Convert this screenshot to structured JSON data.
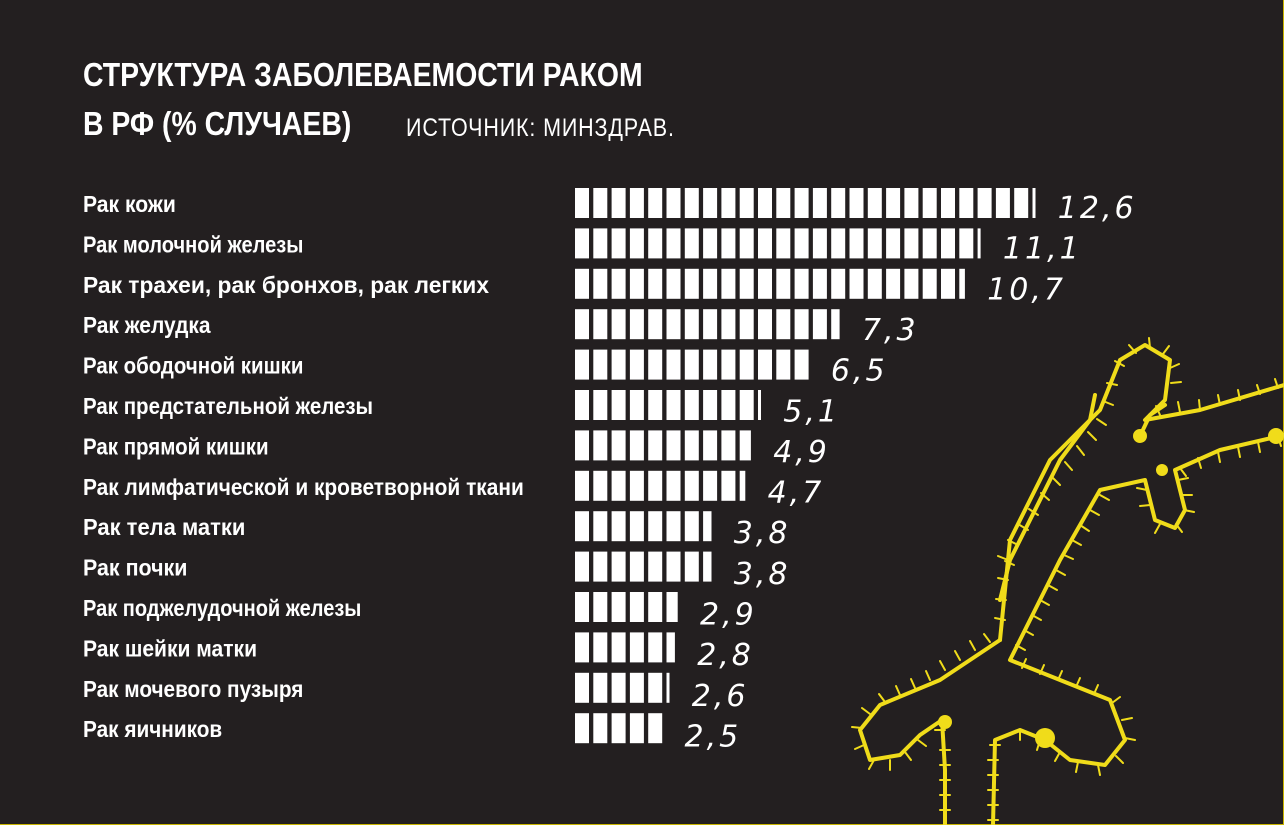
{
  "header": {
    "title_line_1": "СТРУКТУРА ЗАБОЛЕВАЕМОСТИ РАКОМ",
    "title_line_2": "В РФ (% СЛУЧАЕВ)",
    "source": "ИСТОЧНИК: МИНЗДРАВ."
  },
  "colors": {
    "background": "#231f20",
    "bars": "#ffffff",
    "text": "#ffffff",
    "accent": "#f0dc1a",
    "frame": "#c8b400"
  },
  "decoration": {
    "icon": "crime-scene-body-outline-icon"
  },
  "chart_data": {
    "type": "bar",
    "orientation": "horizontal",
    "title": "СТРУКТУРА ЗАБОЛЕВАЕМОСТИ РАКОМ В РФ (% СЛУЧАЕВ)",
    "source": "ИСТОЧНИК: МИНЗДРАВ.",
    "categories": [
      "Рак кожи",
      "Рак молочной железы",
      "Рак трахеи, рак бронхов, рак легких",
      "Рак желудка",
      "Рак ободочной кишки",
      "Рак предстательной железы",
      "Рак прямой кишки",
      "Рак лимфатической и кроветворной ткани",
      "Рак тела матки",
      "Рак почки",
      "Рак поджелудочной железы",
      "Рак шейки матки",
      "Рак мочевого пузыря",
      "Рак яичников"
    ],
    "values": [
      12.6,
      11.1,
      10.7,
      7.3,
      6.5,
      5.1,
      4.9,
      4.7,
      3.8,
      3.8,
      2.9,
      2.8,
      2.6,
      2.5
    ],
    "value_labels": [
      "12,6",
      "11,1",
      "10,7",
      "7,3",
      "6,5",
      "5,1",
      "4,9",
      "4,7",
      "3,8",
      "3,8",
      "2,9",
      "2,8",
      "2,6",
      "2,5"
    ],
    "unit_per_segment": 0.5,
    "xlim": [
      0,
      12.6
    ],
    "grid": false,
    "legend": "none"
  }
}
